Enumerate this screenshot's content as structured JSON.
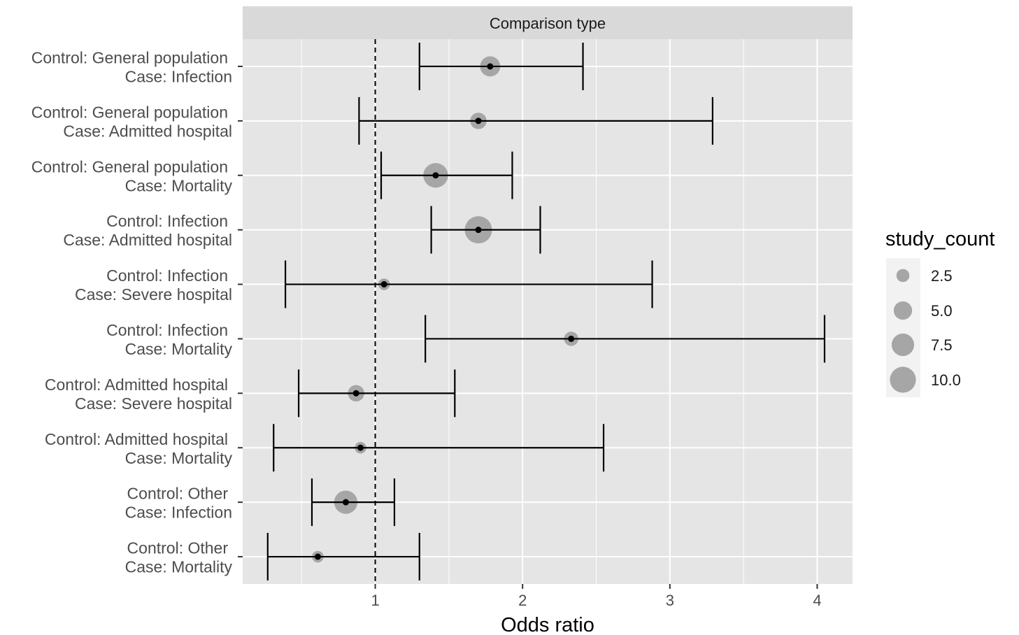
{
  "chart_data": {
    "type": "scatter",
    "subtype": "forest-plot",
    "title": "",
    "facet_strip": "Comparison type",
    "xlabel": "Odds ratio",
    "ylabel": "",
    "xlim": [
      0.1,
      4.24
    ],
    "xticks": [
      {
        "value": 1,
        "label": "1"
      },
      {
        "value": 2,
        "label": "2"
      },
      {
        "value": 3,
        "label": "3"
      },
      {
        "value": 4,
        "label": "4"
      }
    ],
    "reference_line": {
      "x": 1,
      "style": "dashed"
    },
    "grid": true,
    "rows": [
      {
        "control": "Control:  General population",
        "case": "Case:  Infection",
        "estimate": 1.78,
        "lower": 1.3,
        "upper": 2.41,
        "study_count": 6
      },
      {
        "control": "Control:  General population",
        "case": "Case:  Admitted hospital",
        "estimate": 1.7,
        "lower": 0.89,
        "upper": 3.29,
        "study_count": 4
      },
      {
        "control": "Control:  General population",
        "case": "Case:  Mortality",
        "estimate": 1.41,
        "lower": 1.04,
        "upper": 1.93,
        "study_count": 9
      },
      {
        "control": "Control:  Infection",
        "case": "Case:  Admitted hospital",
        "estimate": 1.7,
        "lower": 1.38,
        "upper": 2.12,
        "study_count": 11
      },
      {
        "control": "Control:  Infection",
        "case": "Case:  Severe hospital",
        "estimate": 1.06,
        "lower": 0.39,
        "upper": 2.88,
        "study_count": 2
      },
      {
        "control": "Control:  Infection",
        "case": "Case:  Mortality",
        "estimate": 2.33,
        "lower": 1.34,
        "upper": 4.05,
        "study_count": 3
      },
      {
        "control": "Control:  Admitted hospital",
        "case": "Case:  Severe hospital",
        "estimate": 0.87,
        "lower": 0.48,
        "upper": 1.54,
        "study_count": 4
      },
      {
        "control": "Control:  Admitted hospital",
        "case": "Case:  Mortality",
        "estimate": 0.9,
        "lower": 0.31,
        "upper": 2.55,
        "study_count": 2
      },
      {
        "control": "Control:  Other",
        "case": "Case:  Infection",
        "estimate": 0.8,
        "lower": 0.57,
        "upper": 1.13,
        "study_count": 8
      },
      {
        "control": "Control:  Other",
        "case": "Case:  Mortality",
        "estimate": 0.61,
        "lower": 0.27,
        "upper": 1.3,
        "study_count": 2
      }
    ],
    "legend": {
      "title": "study_count",
      "position": "right",
      "entries": [
        {
          "label": "2.5",
          "value": 2.5
        },
        {
          "label": "5.0",
          "value": 5.0
        },
        {
          "label": "7.5",
          "value": 7.5
        },
        {
          "label": "10.0",
          "value": 10.0
        }
      ]
    },
    "colors": {
      "panel_background": "#e5e5e5",
      "strip_background": "#d9d9d9",
      "gridline": "#ffffff",
      "size_point": "#a6a6a6",
      "estimate_point": "#000000",
      "error_bar": "#000000"
    }
  }
}
